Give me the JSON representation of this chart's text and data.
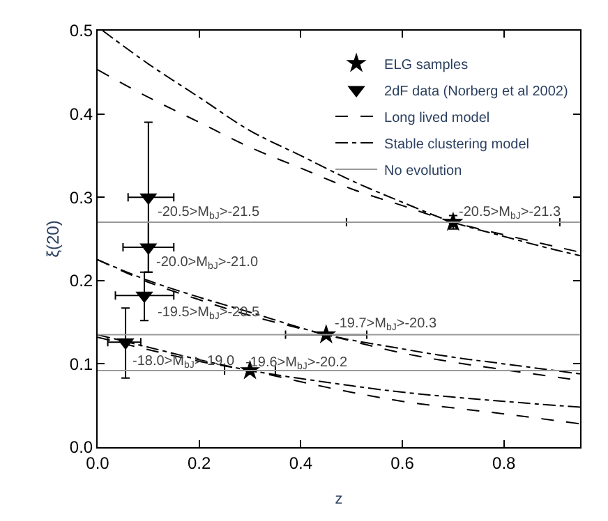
{
  "chart_data": {
    "type": "scatter",
    "xlabel": "z",
    "ylabel": "ξ(20)",
    "xlim": [
      0,
      0.95
    ],
    "ylim": [
      0,
      0.5
    ],
    "xticks": [
      {
        "value": 0,
        "label": "0.0"
      },
      0.2,
      0.4,
      0.6,
      0.8
    ],
    "yticks": [
      {
        "value": 0,
        "label": "0.0"
      },
      0.1,
      0.2,
      0.3,
      0.4,
      0.5
    ],
    "legend": "top right",
    "series": [
      {
        "name": "ELG samples",
        "marker": "star",
        "color": "#000000",
        "x": [
          0.3,
          0.45,
          0.7
        ],
        "values": [
          0.092,
          0.135,
          0.27
        ],
        "xerrors": [
          [
            0.25,
            0.35
          ],
          [
            0.37,
            0.53
          ],
          [
            0.49,
            0.91
          ]
        ],
        "errors": [
          null,
          null,
          [
            0.262,
            0.278
          ]
        ]
      },
      {
        "name": "2dF data (Norberg et al 2002)",
        "marker": "triangle",
        "color": "#000000",
        "x": [
          0.055,
          0.092,
          0.1,
          0.1
        ],
        "values": [
          0.126,
          0.182,
          0.24,
          0.3
        ],
        "xerrors": [
          [
            0.02,
            0.085
          ],
          [
            0.035,
            0.15
          ],
          [
            0.05,
            0.15
          ],
          [
            0.06,
            0.15
          ]
        ],
        "errors": [
          [
            0.083,
            0.167
          ],
          [
            0.152,
            0.21
          ],
          [
            0.21,
            0.27
          ],
          [
            0.21,
            0.39
          ]
        ]
      },
      {
        "name": "Long lived model",
        "type": "line",
        "line_style": "dashed",
        "color": "#000000",
        "x": [
          0,
          0.1,
          0.2,
          0.3,
          0.4,
          0.5,
          0.6,
          0.7,
          0.8,
          0.9,
          0.95
        ],
        "values": [
          0.453,
          0.42,
          0.39,
          0.36,
          0.335,
          0.31,
          0.29,
          0.27,
          0.255,
          0.241,
          0.234
        ]
      },
      {
        "type": "line",
        "line_style": "dashed",
        "color": "#000000",
        "x": [
          0,
          0.1,
          0.2,
          0.3,
          0.45,
          0.6,
          0.7,
          0.8,
          0.95
        ],
        "values": [
          0.225,
          0.198,
          0.177,
          0.158,
          0.135,
          0.113,
          0.102,
          0.093,
          0.08
        ]
      },
      {
        "type": "line",
        "line_style": "dashed",
        "color": "#000000",
        "x": [
          0,
          0.1,
          0.2,
          0.3,
          0.45,
          0.6,
          0.8,
          0.95
        ],
        "values": [
          0.132,
          0.117,
          0.103,
          0.092,
          0.072,
          0.055,
          0.04,
          0.028
        ]
      },
      {
        "name": "Stable clustering model",
        "type": "line",
        "line_style": "dashdot",
        "color": "#000000",
        "x": [
          0.01,
          0.1,
          0.2,
          0.3,
          0.4,
          0.5,
          0.6,
          0.7,
          0.8,
          0.9,
          0.95
        ],
        "values": [
          0.5,
          0.46,
          0.42,
          0.38,
          0.35,
          0.32,
          0.294,
          0.27,
          0.253,
          0.237,
          0.23
        ]
      },
      {
        "type": "line",
        "line_style": "dashdot",
        "color": "#000000",
        "x": [
          0,
          0.1,
          0.2,
          0.3,
          0.45,
          0.6,
          0.7,
          0.8,
          0.95
        ],
        "values": [
          0.225,
          0.2,
          0.18,
          0.162,
          0.135,
          0.118,
          0.108,
          0.1,
          0.088
        ]
      },
      {
        "type": "line",
        "line_style": "dashdot",
        "color": "#000000",
        "x": [
          0,
          0.1,
          0.2,
          0.3,
          0.45,
          0.6,
          0.8,
          0.95
        ],
        "values": [
          0.135,
          0.12,
          0.105,
          0.092,
          0.078,
          0.066,
          0.055,
          0.048
        ]
      },
      {
        "name": "No evolution",
        "type": "line",
        "line_style": "solid",
        "color": "#999999",
        "x": [
          0,
          0.95
        ],
        "values": [
          0.27,
          0.27
        ]
      },
      {
        "type": "line",
        "line_style": "solid",
        "color": "#999999",
        "x": [
          0,
          0.95
        ],
        "values": [
          0.135,
          0.135
        ]
      },
      {
        "type": "line",
        "line_style": "solid",
        "color": "#999999",
        "x": [
          0,
          0.95
        ],
        "values": [
          0.092,
          0.092
        ]
      }
    ],
    "annotations": [
      {
        "text": "-20.5>M$_{bJ}$>-21.5",
        "x": 0.1,
        "y": 0.3
      },
      {
        "text": "-20.0>M$_{bJ}$>-21.0",
        "x": 0.1,
        "y": 0.24
      },
      {
        "text": "-19.5>M$_{bJ}$>-20.5",
        "x": 0.092,
        "y": 0.182
      },
      {
        "text": "-18.0>M$_{bJ}$>-19.0",
        "x": 0.055,
        "y": 0.126
      },
      {
        "text": "-19.6>M$_{bJ}$>-20.2",
        "x": 0.3,
        "y": 0.092
      },
      {
        "text": "-19.7>M$_{bJ}$>-20.3",
        "x": 0.45,
        "y": 0.135
      },
      {
        "text": "-20.5>M$_{bJ}$>-21.3",
        "x": 0.7,
        "y": 0.27
      }
    ]
  }
}
